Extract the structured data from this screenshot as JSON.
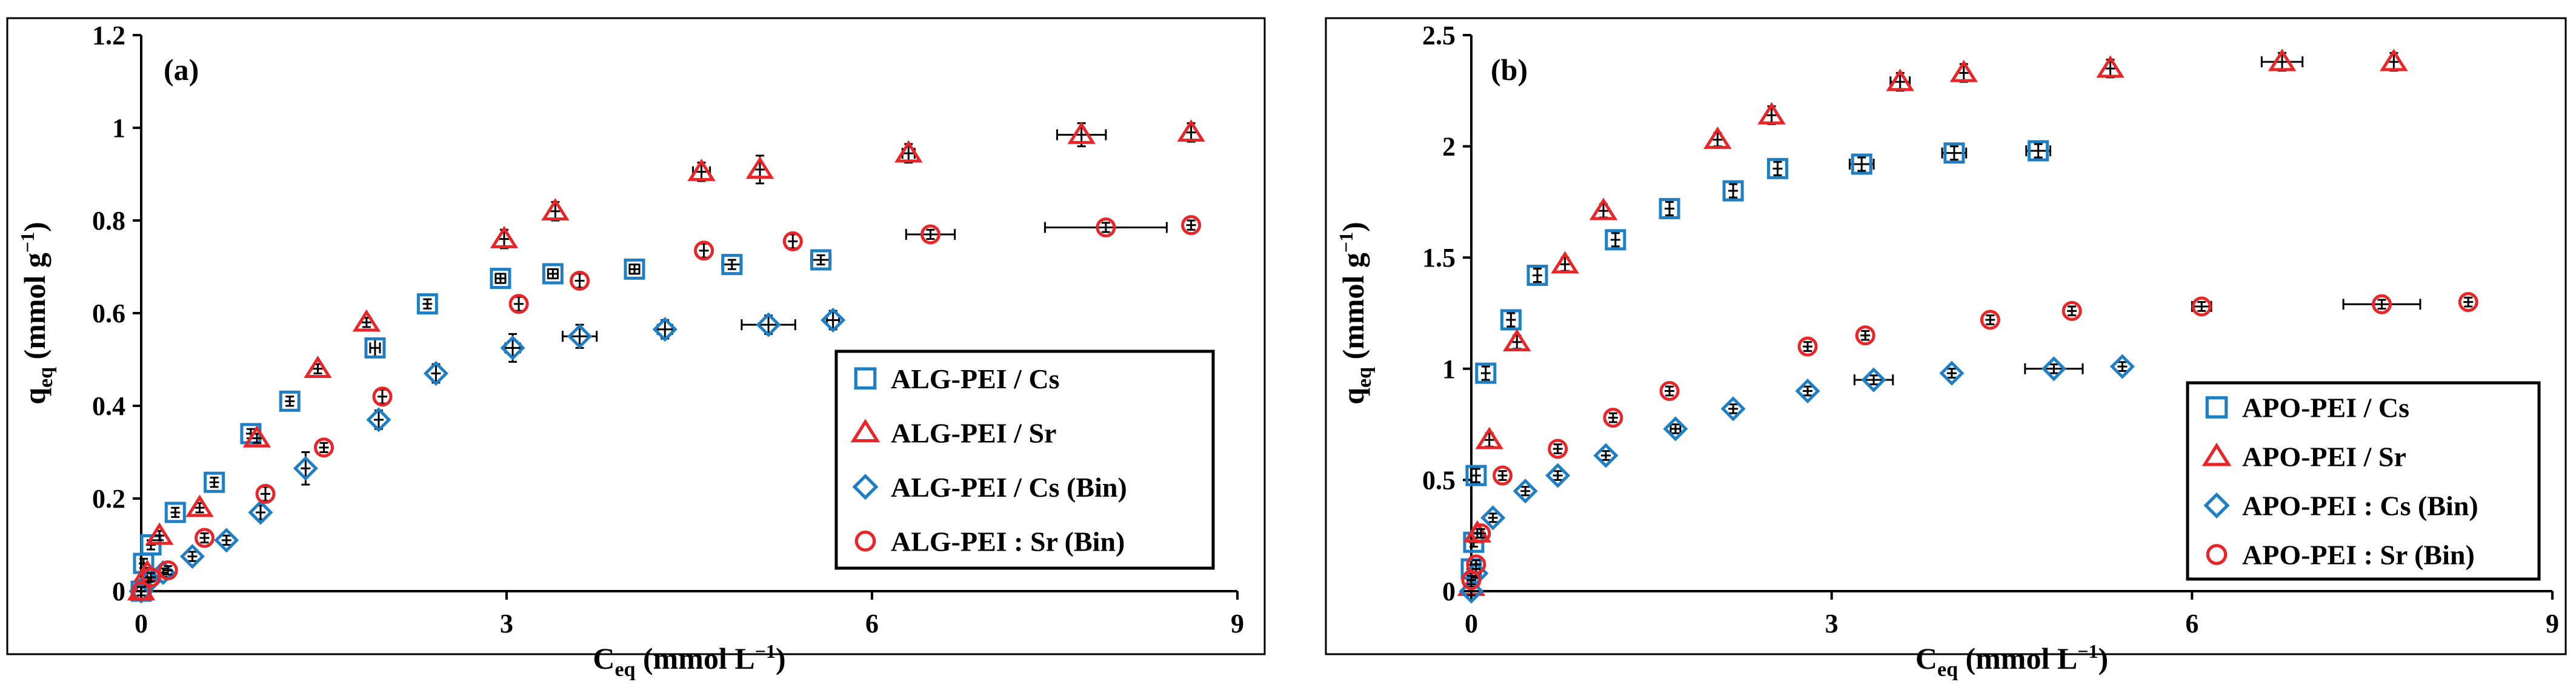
{
  "chart_data": [
    {
      "type": "scatter",
      "panel_label": "(a)",
      "xlabel": "C",
      "xlabel_sub": "eq",
      "xlabel_unit": " (mmol L",
      "xlabel_sup": "−1",
      "xlabel_close": ")",
      "ylabel": "q",
      "ylabel_sub": "eq",
      "ylabel_unit": " (mmol g",
      "ylabel_sup": "−1",
      "ylabel_close": ")",
      "xlim": [
        0,
        9
      ],
      "ylim": [
        0,
        1.2
      ],
      "xticks": [
        0,
        3,
        6,
        9
      ],
      "xtick_labels": [
        "0",
        "3",
        "6",
        "9"
      ],
      "yticks": [
        0,
        0.2,
        0.4,
        0.6,
        0.8,
        1,
        1.2
      ],
      "ytick_labels": [
        "0",
        "0.2",
        "0.4",
        "0.6",
        "0.8",
        "1",
        "1.2"
      ],
      "legend_position": "lower-right",
      "series": [
        {
          "name": "ALG-PEI / Cs",
          "marker": "square",
          "color": "#1f7fc4",
          "points": [
            [
              0,
              0
            ],
            [
              0.02,
              0.06
            ],
            [
              0.08,
              0.1
            ],
            [
              0.28,
              0.17
            ],
            [
              0.6,
              0.235
            ],
            [
              0.9,
              0.34
            ],
            [
              1.22,
              0.41
            ],
            [
              1.92,
              0.525
            ],
            [
              2.35,
              0.62
            ],
            [
              2.95,
              0.675
            ],
            [
              3.38,
              0.685
            ],
            [
              4.05,
              0.695
            ],
            [
              4.85,
              0.705
            ],
            [
              5.58,
              0.715
            ]
          ],
          "xerr": [
            0,
            0,
            0,
            0,
            0,
            0,
            0,
            0.04,
            0,
            0.04,
            0.04,
            0.04,
            0.08,
            0.08
          ],
          "yerr": [
            0,
            0.01,
            0.01,
            0.01,
            0.01,
            0.01,
            0.01,
            0.02,
            0.01,
            0.01,
            0.01,
            0.01,
            0.01,
            0.01
          ]
        },
        {
          "name": "ALG-PEI / Sr",
          "marker": "triangle",
          "color": "#e8262a",
          "points": [
            [
              0,
              0
            ],
            [
              0.05,
              0.04
            ],
            [
              0.15,
              0.12
            ],
            [
              0.48,
              0.18
            ],
            [
              0.95,
              0.33
            ],
            [
              1.45,
              0.48
            ],
            [
              1.85,
              0.58
            ],
            [
              2.98,
              0.76
            ],
            [
              3.4,
              0.82
            ],
            [
              4.6,
              0.905
            ],
            [
              5.08,
              0.91
            ],
            [
              6.3,
              0.945
            ],
            [
              7.72,
              0.985
            ],
            [
              8.62,
              0.99
            ]
          ],
          "xerr": [
            0,
            0,
            0,
            0,
            0,
            0,
            0,
            0,
            0,
            0.07,
            0,
            0.05,
            0.2,
            0
          ],
          "yerr": [
            0,
            0.01,
            0.01,
            0.01,
            0.01,
            0.01,
            0.01,
            0.02,
            0.02,
            0.02,
            0.03,
            0.02,
            0.025,
            0.02
          ]
        },
        {
          "name": "ALG-PEI / Cs (Bin)",
          "marker": "diamond",
          "color": "#1f7fc4",
          "points": [
            [
              0,
              0
            ],
            [
              0.06,
              0.02
            ],
            [
              0.18,
              0.04
            ],
            [
              0.42,
              0.075
            ],
            [
              0.7,
              0.11
            ],
            [
              0.98,
              0.17
            ],
            [
              1.35,
              0.265
            ],
            [
              1.95,
              0.37
            ],
            [
              2.42,
              0.47
            ],
            [
              3.05,
              0.525
            ],
            [
              3.6,
              0.55
            ],
            [
              4.3,
              0.565
            ],
            [
              5.15,
              0.575
            ],
            [
              5.68,
              0.585
            ]
          ],
          "xerr": [
            0,
            0,
            0,
            0,
            0,
            0,
            0,
            0,
            0,
            0.06,
            0.14,
            0.06,
            0.22,
            0.05
          ],
          "yerr": [
            0,
            0.005,
            0.005,
            0.01,
            0.01,
            0.015,
            0.035,
            0.02,
            0.02,
            0.03,
            0.025,
            0.02,
            0.02,
            0.02
          ]
        },
        {
          "name": "ALG-PEI : Sr (Bin)",
          "marker": "circle",
          "color": "#e8262a",
          "points": [
            [
              0,
              0
            ],
            [
              0.08,
              0.03
            ],
            [
              0.22,
              0.045
            ],
            [
              0.52,
              0.115
            ],
            [
              1.02,
              0.21
            ],
            [
              1.5,
              0.31
            ],
            [
              1.98,
              0.42
            ],
            [
              3.1,
              0.62
            ],
            [
              3.6,
              0.67
            ],
            [
              4.62,
              0.735
            ],
            [
              5.35,
              0.755
            ],
            [
              6.48,
              0.77
            ],
            [
              7.92,
              0.785
            ],
            [
              8.62,
              0.79
            ]
          ],
          "xerr": [
            0,
            0,
            0,
            0,
            0,
            0,
            0,
            0,
            0,
            0,
            0,
            0.2,
            0.5,
            0
          ],
          "yerr": [
            0,
            0.005,
            0.005,
            0.01,
            0.015,
            0.01,
            0.015,
            0.015,
            0.015,
            0.015,
            0.015,
            0.01,
            0.01,
            0.01
          ]
        }
      ]
    },
    {
      "type": "scatter",
      "panel_label": "(b)",
      "xlabel": "C",
      "xlabel_sub": "eq",
      "xlabel_unit": " (mmol L",
      "xlabel_sup": "−1",
      "xlabel_close": ")",
      "ylabel": "q",
      "ylabel_sub": "eq",
      "ylabel_unit": " (mmol g",
      "ylabel_sup": "−1",
      "ylabel_close": ")",
      "xlim": [
        0,
        9
      ],
      "ylim": [
        0,
        2.5
      ],
      "xticks": [
        0,
        3,
        6,
        9
      ],
      "xtick_labels": [
        "0",
        "3",
        "6",
        "9"
      ],
      "yticks": [
        0,
        0.5,
        1,
        1.5,
        2,
        2.5
      ],
      "ytick_labels": [
        "0",
        "0.5",
        "1",
        "1.5",
        "2",
        "2.5"
      ],
      "legend_position": "lower-right",
      "series": [
        {
          "name": "APO-PEI / Cs",
          "marker": "square",
          "color": "#1f7fc4",
          "points": [
            [
              0,
              0.1
            ],
            [
              0.02,
              0.22
            ],
            [
              0.04,
              0.52
            ],
            [
              0.12,
              0.98
            ],
            [
              0.33,
              1.22
            ],
            [
              0.55,
              1.42
            ],
            [
              1.2,
              1.58
            ],
            [
              1.65,
              1.72
            ],
            [
              2.18,
              1.8
            ],
            [
              2.55,
              1.9
            ],
            [
              3.25,
              1.92
            ],
            [
              4.02,
              1.97
            ],
            [
              4.72,
              1.98
            ]
          ],
          "xerr": [
            0,
            0,
            0,
            0,
            0,
            0,
            0,
            0,
            0,
            0,
            0.1,
            0.1,
            0.1
          ],
          "yerr": [
            0,
            0.02,
            0.03,
            0.03,
            0.03,
            0.03,
            0.03,
            0.03,
            0.03,
            0.03,
            0.03,
            0.03,
            0.03
          ]
        },
        {
          "name": "APO-PEI / Sr",
          "marker": "triangle",
          "color": "#e8262a",
          "points": [
            [
              0,
              0.02
            ],
            [
              0.05,
              0.26
            ],
            [
              0.15,
              0.68
            ],
            [
              0.38,
              1.12
            ],
            [
              0.78,
              1.47
            ],
            [
              1.1,
              1.71
            ],
            [
              2.05,
              2.03
            ],
            [
              2.5,
              2.14
            ],
            [
              3.57,
              2.29
            ],
            [
              4.1,
              2.33
            ],
            [
              5.32,
              2.35
            ],
            [
              6.75,
              2.38
            ],
            [
              7.68,
              2.38
            ]
          ],
          "xerr": [
            0,
            0,
            0,
            0,
            0,
            0,
            0,
            0,
            0.08,
            0,
            0,
            0.17,
            0
          ],
          "yerr": [
            0,
            0.02,
            0.03,
            0.03,
            0.03,
            0.03,
            0.03,
            0.04,
            0.04,
            0.04,
            0.04,
            0.04,
            0.04
          ]
        },
        {
          "name": "APO-PEI : Cs (Bin)",
          "marker": "diamond",
          "color": "#1f7fc4",
          "points": [
            [
              0,
              0
            ],
            [
              0.04,
              0.08
            ],
            [
              0.18,
              0.33
            ],
            [
              0.45,
              0.45
            ],
            [
              0.72,
              0.52
            ],
            [
              1.12,
              0.61
            ],
            [
              1.7,
              0.73
            ],
            [
              2.18,
              0.82
            ],
            [
              2.8,
              0.9
            ],
            [
              3.35,
              0.95
            ],
            [
              4.0,
              0.98
            ],
            [
              4.85,
              1.0
            ],
            [
              5.42,
              1.01
            ]
          ],
          "xerr": [
            0,
            0,
            0,
            0,
            0,
            0,
            0.04,
            0,
            0,
            0.16,
            0,
            0.24,
            0
          ],
          "yerr": [
            0,
            0.01,
            0.01,
            0.01,
            0.02,
            0.02,
            0.02,
            0.02,
            0.02,
            0.02,
            0.02,
            0.02,
            0.02
          ]
        },
        {
          "name": "APO-PEI : Sr (Bin)",
          "marker": "circle",
          "color": "#e8262a",
          "points": [
            [
              0,
              0.05
            ],
            [
              0.04,
              0.12
            ],
            [
              0.08,
              0.26
            ],
            [
              0.26,
              0.52
            ],
            [
              0.72,
              0.64
            ],
            [
              1.18,
              0.78
            ],
            [
              1.65,
              0.9
            ],
            [
              2.8,
              1.1
            ],
            [
              3.28,
              1.15
            ],
            [
              4.32,
              1.22
            ],
            [
              5.0,
              1.26
            ],
            [
              6.08,
              1.28
            ],
            [
              7.58,
              1.29
            ],
            [
              8.3,
              1.3
            ]
          ],
          "xerr": [
            0,
            0,
            0,
            0,
            0,
            0,
            0,
            0,
            0,
            0,
            0,
            0.08,
            0.32,
            0
          ],
          "yerr": [
            0,
            0.01,
            0.01,
            0.02,
            0.02,
            0.02,
            0.02,
            0.02,
            0.02,
            0.02,
            0.02,
            0.02,
            0.02,
            0.02
          ]
        }
      ]
    }
  ]
}
